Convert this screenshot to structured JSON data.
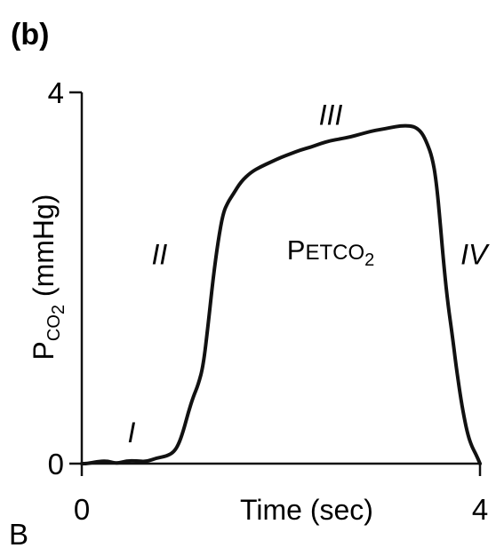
{
  "panel_label": "(b)",
  "corner_label": "B",
  "chart_data": {
    "type": "line",
    "title": "",
    "xlabel": "Time (sec)",
    "ylabel": {
      "main": "P",
      "subscript": "CO",
      "subsub": "2",
      "suffix": " (mmHg)"
    },
    "xlim": [
      0,
      4
    ],
    "ylim": [
      0,
      4
    ],
    "x_ticks": [
      {
        "value": 0,
        "label": "0"
      },
      {
        "value": 4,
        "label": "4"
      }
    ],
    "y_ticks": [
      {
        "value": 0,
        "label": "0"
      },
      {
        "value": 4,
        "label": "4"
      }
    ],
    "grid": false,
    "line_color": "#111111",
    "series": [
      {
        "name": "",
        "x": [
          0.0,
          0.05,
          0.15,
          0.25,
          0.35,
          0.45,
          0.55,
          0.65,
          0.75,
          0.85,
          0.92,
          0.97,
          1.02,
          1.07,
          1.12,
          1.17,
          1.22,
          1.27,
          1.32,
          1.37,
          1.42,
          1.47,
          1.52,
          1.6,
          1.7,
          1.8,
          1.9,
          2.0,
          2.1,
          2.2,
          2.3,
          2.4,
          2.5,
          2.6,
          2.7,
          2.8,
          2.9,
          3.0,
          3.1,
          3.2,
          3.3,
          3.36,
          3.42,
          3.47,
          3.52,
          3.56,
          3.6,
          3.64,
          3.68,
          3.72,
          3.76,
          3.8,
          3.84,
          3.88,
          3.92,
          3.96,
          4.0
        ],
        "y": [
          0.0,
          0.0,
          0.02,
          0.03,
          0.0,
          0.03,
          0.03,
          0.02,
          0.06,
          0.08,
          0.12,
          0.2,
          0.35,
          0.55,
          0.72,
          0.85,
          1.05,
          1.5,
          2.0,
          2.4,
          2.7,
          2.82,
          2.9,
          3.04,
          3.14,
          3.2,
          3.25,
          3.3,
          3.34,
          3.38,
          3.41,
          3.45,
          3.48,
          3.5,
          3.52,
          3.55,
          3.58,
          3.6,
          3.62,
          3.64,
          3.64,
          3.62,
          3.56,
          3.45,
          3.3,
          3.05,
          2.6,
          2.1,
          1.7,
          1.4,
          1.05,
          0.75,
          0.5,
          0.3,
          0.18,
          0.1,
          0.0
        ]
      }
    ],
    "annotations": [
      {
        "text": "I",
        "x": 0.5,
        "y": 0.23
      },
      {
        "text": "II",
        "x": 0.78,
        "y": 2.15
      },
      {
        "text": "III",
        "x": 2.5,
        "y": 3.65
      },
      {
        "text": "IV",
        "x": 3.94,
        "y": 2.15
      }
    ],
    "inner_label": {
      "main": "P",
      "smallcaps": "ETCO",
      "subscript": "2",
      "x": 2.5,
      "y": 2.2
    }
  }
}
